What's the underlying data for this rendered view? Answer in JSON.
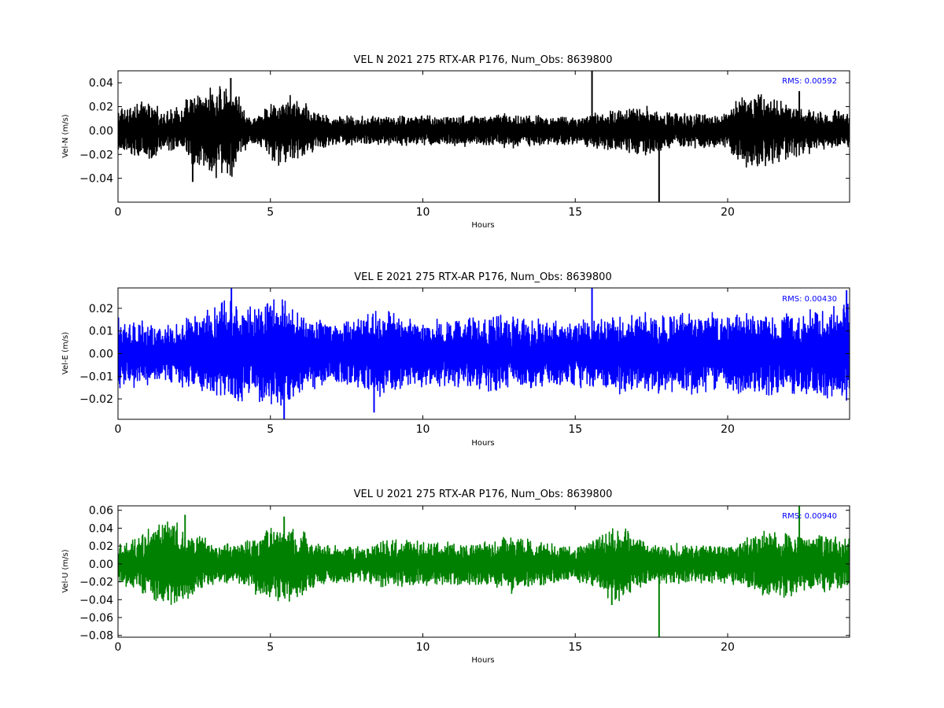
{
  "chart_data": [
    {
      "type": "line",
      "title": "VEL N 2021 275 RTX-AR  P176, Num_Obs: 8639800",
      "xlabel": "Hours",
      "ylabel": "Vel-N (m/s)",
      "xlim": [
        0,
        24
      ],
      "ylim": [
        -0.06,
        0.05
      ],
      "xticks": [
        0,
        5,
        10,
        15,
        20
      ],
      "xtick_labels": [
        "0",
        "5",
        "10",
        "15",
        "20"
      ],
      "yticks": [
        -0.04,
        -0.02,
        0.0,
        0.02,
        0.04
      ],
      "ytick_labels": [
        "−0.04",
        "−0.02",
        "0.00",
        "0.02",
        "0.04"
      ],
      "color": "#000000",
      "annotation": "RMS:  0.00592",
      "annotation_color": "#0000ff",
      "grid": false,
      "envelope": {
        "hours": [
          0,
          0.5,
          1,
          1.5,
          2,
          2.3,
          2.7,
          3,
          3.3,
          3.7,
          4,
          4.3,
          4.7,
          5,
          5.3,
          5.7,
          6,
          6.5,
          7,
          8,
          9,
          10,
          11,
          12,
          13,
          14,
          15,
          16,
          16.5,
          17,
          17.5,
          18,
          19,
          20,
          20.3,
          20.7,
          21,
          21.5,
          22,
          22.5,
          23,
          23.5,
          24
        ],
        "amplitude": [
          0.018,
          0.02,
          0.022,
          0.015,
          0.017,
          0.028,
          0.03,
          0.033,
          0.035,
          0.037,
          0.025,
          0.01,
          0.013,
          0.022,
          0.026,
          0.027,
          0.024,
          0.015,
          0.012,
          0.011,
          0.011,
          0.012,
          0.012,
          0.012,
          0.013,
          0.011,
          0.011,
          0.015,
          0.017,
          0.019,
          0.018,
          0.014,
          0.014,
          0.012,
          0.027,
          0.029,
          0.028,
          0.025,
          0.022,
          0.018,
          0.015,
          0.015,
          0.014
        ]
      },
      "spikes": [
        {
          "x": 15.55,
          "y": 0.05
        },
        {
          "x": 17.75,
          "y": -0.06
        },
        {
          "x": 22.35,
          "y": 0.033
        },
        {
          "x": 3.7,
          "y": 0.044
        },
        {
          "x": 2.45,
          "y": -0.043
        }
      ]
    },
    {
      "type": "line",
      "title": "VEL E 2021 275 RTX-AR  P176, Num_Obs: 8639800",
      "xlabel": "Hours",
      "ylabel": "Vel-E (m/s)",
      "xlim": [
        0,
        24
      ],
      "ylim": [
        -0.029,
        0.029
      ],
      "xticks": [
        0,
        5,
        10,
        15,
        20
      ],
      "xtick_labels": [
        "0",
        "5",
        "10",
        "15",
        "20"
      ],
      "yticks": [
        -0.02,
        -0.01,
        0.0,
        0.01,
        0.02
      ],
      "ytick_labels": [
        "−0.02",
        "−0.01",
        "0.00",
        "0.01",
        "0.02"
      ],
      "color": "#0000ff",
      "annotation": "RMS:  0.00430",
      "annotation_color": "#0000ff",
      "grid": false,
      "envelope": {
        "hours": [
          0,
          0.5,
          1,
          1.5,
          2,
          2.5,
          3,
          3.5,
          4,
          4.5,
          5,
          5.5,
          6,
          6.5,
          7,
          8,
          8.5,
          9,
          10,
          11,
          12,
          13,
          14,
          15,
          15.5,
          16,
          17,
          18,
          19,
          20,
          21,
          22,
          23,
          23.5,
          24
        ],
        "amplitude": [
          0.015,
          0.014,
          0.012,
          0.011,
          0.013,
          0.016,
          0.018,
          0.022,
          0.02,
          0.019,
          0.023,
          0.022,
          0.017,
          0.014,
          0.013,
          0.014,
          0.018,
          0.016,
          0.014,
          0.014,
          0.015,
          0.015,
          0.014,
          0.013,
          0.014,
          0.015,
          0.016,
          0.016,
          0.017,
          0.016,
          0.016,
          0.017,
          0.018,
          0.019,
          0.021
        ]
      },
      "spikes": [
        {
          "x": 3.72,
          "y": 0.029
        },
        {
          "x": 15.55,
          "y": 0.029
        },
        {
          "x": 5.45,
          "y": -0.029
        },
        {
          "x": 23.9,
          "y": 0.028
        },
        {
          "x": 8.4,
          "y": -0.026
        }
      ]
    },
    {
      "type": "line",
      "title": "VEL U 2021 275 RTX-AR  P176, Num_Obs: 8639800",
      "xlabel": "Hours",
      "ylabel": "Vel-U (m/s)",
      "xlim": [
        0,
        24
      ],
      "ylim": [
        -0.082,
        0.065
      ],
      "xticks": [
        0,
        5,
        10,
        15,
        20
      ],
      "xtick_labels": [
        "0",
        "5",
        "10",
        "15",
        "20"
      ],
      "yticks": [
        -0.08,
        -0.06,
        -0.04,
        -0.02,
        0.0,
        0.02,
        0.04,
        0.06
      ],
      "ytick_labels": [
        "−0.08",
        "−0.06",
        "−0.04",
        "−0.02",
        "0.00",
        "0.02",
        "0.04",
        "0.06"
      ],
      "color": "#008000",
      "annotation": "RMS:  0.00940",
      "annotation_color": "#0000ff",
      "grid": false,
      "envelope": {
        "hours": [
          0,
          0.5,
          1,
          1.5,
          2,
          2.5,
          3,
          4,
          4.5,
          5,
          5.5,
          6,
          6.5,
          7,
          8,
          8.5,
          9,
          10,
          11,
          12,
          13,
          14,
          15,
          15.5,
          16,
          16.5,
          17,
          17.5,
          18,
          19,
          20,
          20.5,
          21,
          21.5,
          22,
          22.5,
          23,
          23.5,
          24
        ],
        "amplitude": [
          0.02,
          0.026,
          0.038,
          0.042,
          0.043,
          0.035,
          0.022,
          0.02,
          0.03,
          0.038,
          0.043,
          0.036,
          0.022,
          0.02,
          0.018,
          0.022,
          0.025,
          0.023,
          0.022,
          0.023,
          0.03,
          0.022,
          0.018,
          0.022,
          0.035,
          0.038,
          0.026,
          0.02,
          0.02,
          0.021,
          0.02,
          0.024,
          0.033,
          0.036,
          0.034,
          0.026,
          0.03,
          0.029,
          0.027
        ]
      },
      "spikes": [
        {
          "x": 17.75,
          "y": -0.082
        },
        {
          "x": 22.35,
          "y": 0.065
        },
        {
          "x": 2.2,
          "y": 0.055
        },
        {
          "x": 5.45,
          "y": 0.053
        },
        {
          "x": 16.2,
          "y": -0.046
        }
      ]
    }
  ]
}
